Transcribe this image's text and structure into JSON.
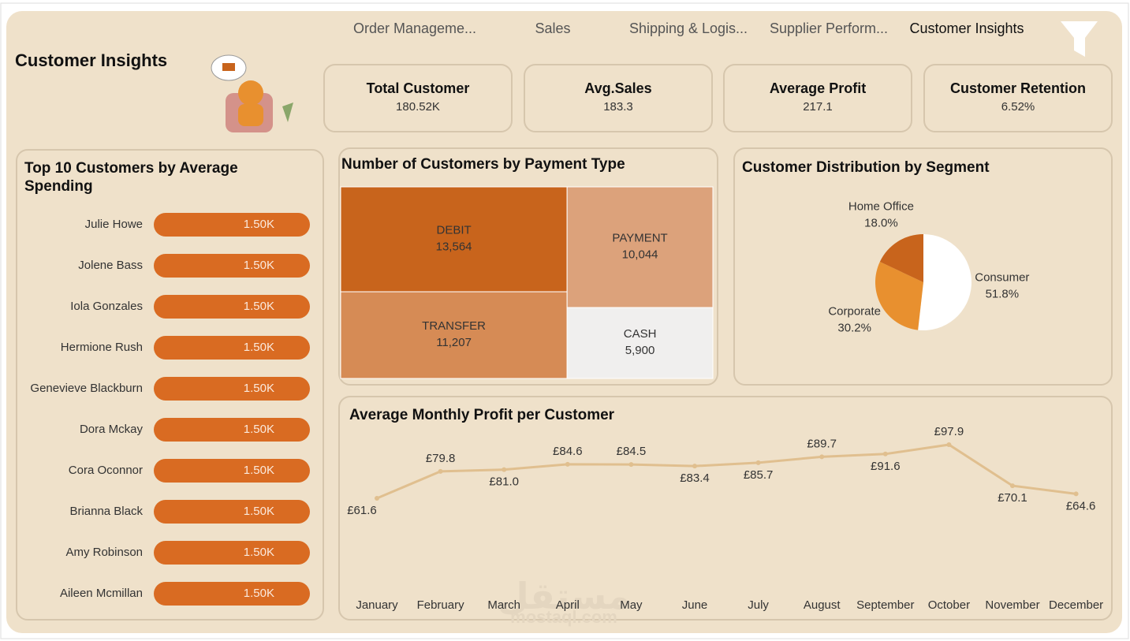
{
  "nav": {
    "tabs": [
      "Order Manageme...",
      "Sales",
      "Shipping & Logis...",
      "Supplier Perform...",
      "Customer Insights"
    ]
  },
  "header": {
    "title": "Customer Insights"
  },
  "kpis": [
    {
      "label": "Total Customer",
      "value": "180.52K"
    },
    {
      "label": "Avg.Sales",
      "value": "183.3"
    },
    {
      "label": "Average Profit",
      "value": "217.1"
    },
    {
      "label": "Customer Retention",
      "value": "6.52%"
    }
  ],
  "watermark": {
    "arabic": "مستقل",
    "latin": "mostaql.com"
  },
  "chart_data": [
    {
      "type": "hbar",
      "title": "Top 10 Customers by Average Spending",
      "categories": [
        "Julie Howe",
        "Jolene Bass",
        "Iola Gonzales",
        "Hermione Rush",
        "Genevieve Blackburn",
        "Dora Mckay",
        "Cora Oconnor",
        "Brianna Black",
        "Amy Robinson",
        "Aileen Mcmillan"
      ],
      "values": [
        1500,
        1500,
        1500,
        1500,
        1500,
        1500,
        1500,
        1500,
        1500,
        1500
      ],
      "value_labels": [
        "1.50K",
        "1.50K",
        "1.50K",
        "1.50K",
        "1.50K",
        "1.50K",
        "1.50K",
        "1.50K",
        "1.50K",
        "1.50K"
      ],
      "color": "#d96b22"
    },
    {
      "type": "treemap",
      "title": "Number of Customers by Payment Type",
      "categories": [
        "DEBIT",
        "TRANSFER",
        "PAYMENT",
        "CASH"
      ],
      "values": [
        13564,
        11207,
        10044,
        5900
      ],
      "value_labels": [
        "13,564",
        "11,207",
        "10,044",
        "5,900"
      ],
      "colors": [
        "#c8641c",
        "#d68b55",
        "#dca27b",
        "#f0efee"
      ]
    },
    {
      "type": "pie",
      "title": "Customer Distribution by Segment",
      "categories": [
        "Consumer",
        "Corporate",
        "Home Office"
      ],
      "values": [
        51.8,
        30.2,
        18.0
      ],
      "value_labels": [
        "51.8%",
        "30.2%",
        "18.0%"
      ],
      "colors": [
        "#ffffff",
        "#e8902f",
        "#c8641c"
      ]
    },
    {
      "type": "line",
      "title": "Average Monthly Profit per Customer",
      "categories": [
        "January",
        "February",
        "March",
        "April",
        "May",
        "June",
        "July",
        "August",
        "September",
        "October",
        "November",
        "December"
      ],
      "values": [
        61.6,
        79.8,
        81.0,
        84.6,
        84.5,
        83.4,
        85.7,
        89.7,
        91.6,
        97.9,
        70.1,
        64.6
      ],
      "value_labels": [
        "£61.6",
        "£79.8",
        "£81.0",
        "£84.6",
        "£84.5",
        "£83.4",
        "£85.7",
        "£89.7",
        "£91.6",
        "£97.9",
        "£70.1",
        "£64.6"
      ],
      "color": "#e0bf8f"
    }
  ]
}
